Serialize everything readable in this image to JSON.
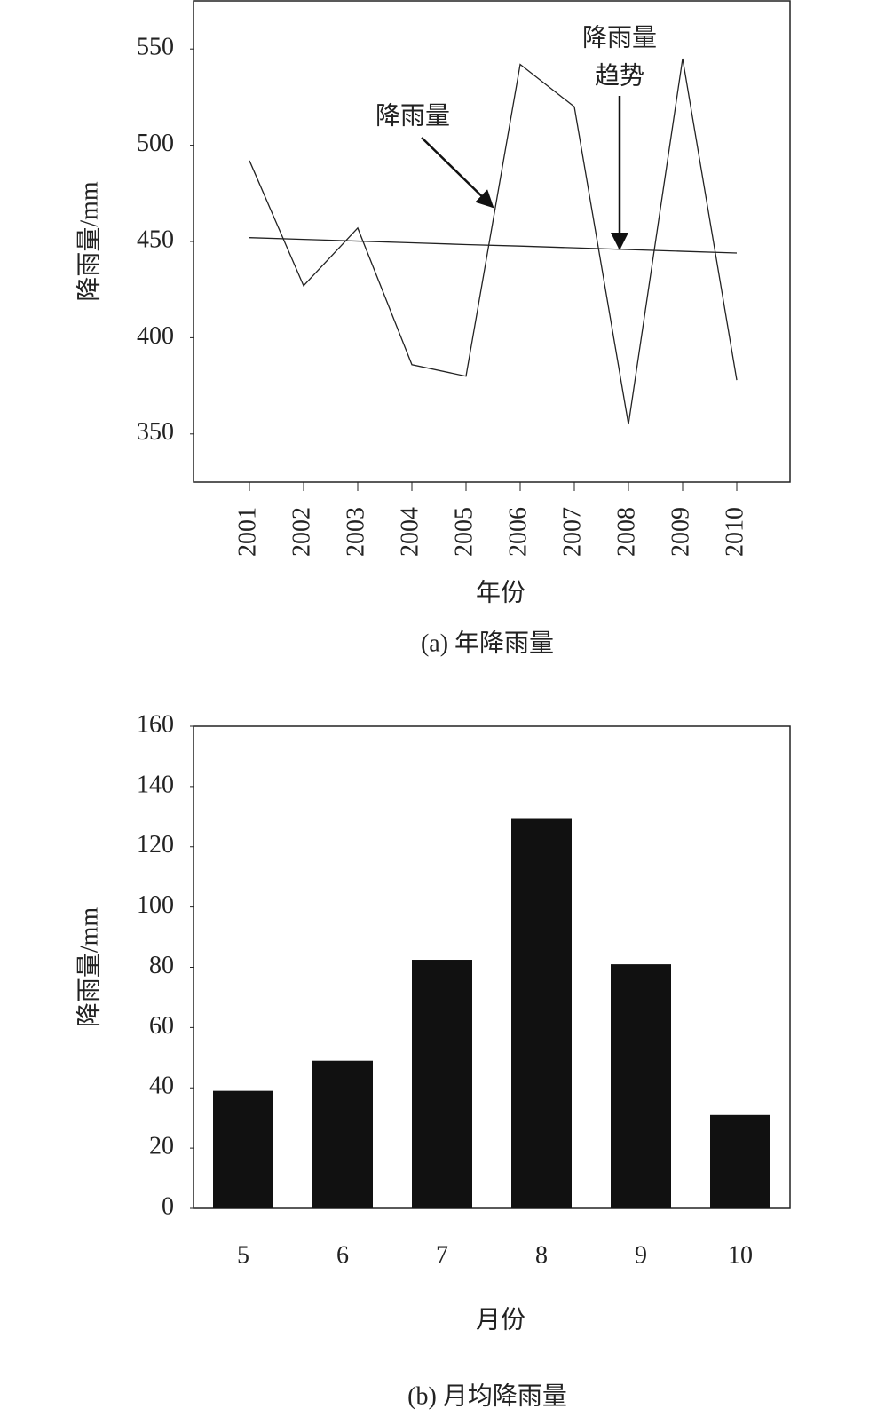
{
  "chart_data": [
    {
      "type": "line",
      "caption": "(a) 年降雨量",
      "xlabel": "年份",
      "ylabel": "降雨量/mm",
      "categories": [
        "2001",
        "2002",
        "2003",
        "2004",
        "2005",
        "2006",
        "2007",
        "2008",
        "2009",
        "2010"
      ],
      "series": [
        {
          "color": "#222222",
          "values": [
            492,
            427,
            457,
            386,
            380,
            542,
            520,
            355,
            545,
            378
          ]
        },
        {
          "color": "#222222",
          "values": [
            452,
            451.1,
            450.2,
            449.3,
            448.4,
            447.6,
            446.7,
            445.8,
            444.9,
            444
          ]
        }
      ],
      "annotations": [
        [
          "降雨量"
        ],
        [
          "降雨量",
          "趋势"
        ]
      ],
      "ylim": [
        325,
        575
      ],
      "yticks": [
        350,
        400,
        450,
        500,
        550
      ]
    },
    {
      "type": "bar",
      "caption": "(b) 月均降雨量",
      "xlabel": "月份",
      "ylabel": "降雨量/mm",
      "categories": [
        "5",
        "6",
        "7",
        "8",
        "9",
        "10"
      ],
      "color": "#111111",
      "values": [
        39,
        49,
        82.5,
        129.5,
        81,
        31
      ],
      "ylim": [
        0,
        160
      ],
      "yticks": [
        0,
        20,
        40,
        60,
        80,
        100,
        120,
        140,
        160
      ]
    }
  ]
}
